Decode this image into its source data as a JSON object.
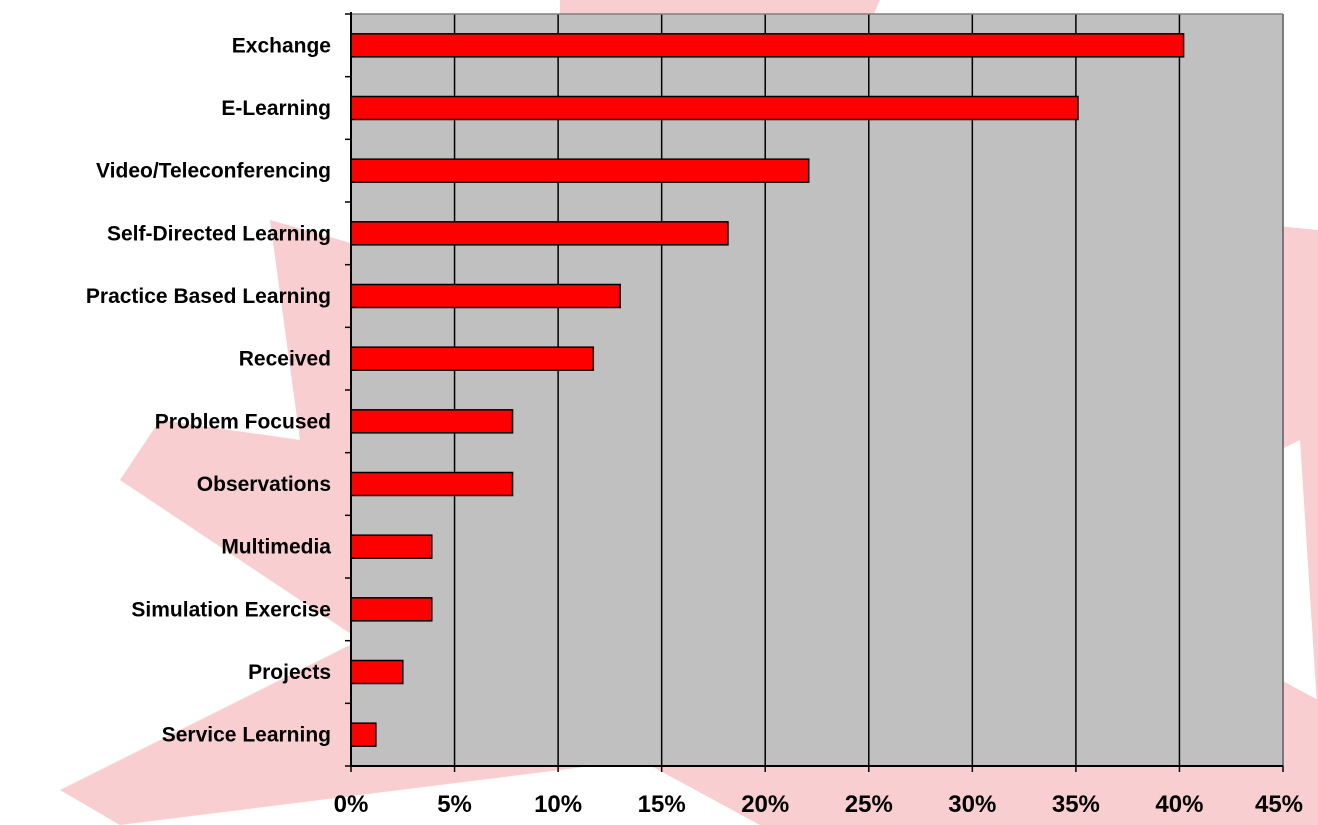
{
  "colors": {
    "bar_fill": "#ff0000",
    "bar_stroke": "#000000",
    "plot_background": "#c0c0c0",
    "gridline": "#000000",
    "decorative_shape": "#f4a6aa"
  },
  "chart_data": {
    "type": "bar",
    "orientation": "horizontal",
    "title": "",
    "xlabel": "",
    "ylabel": "",
    "categories": [
      "Exchange",
      "E-Learning",
      "Video/Teleconferencing",
      "Self-Directed Learning",
      "Practice Based Learning",
      "Received",
      "Problem Focused",
      "Observations",
      "Multimedia",
      "Simulation Exercise",
      "Projects",
      "Service Learning"
    ],
    "values": [
      40.2,
      35.1,
      22.1,
      18.2,
      13.0,
      11.7,
      7.8,
      7.8,
      3.9,
      3.9,
      2.5,
      1.2
    ],
    "xlim": [
      0,
      45
    ],
    "x_ticks": [
      0,
      5,
      10,
      15,
      20,
      25,
      30,
      35,
      40,
      45
    ],
    "x_tick_labels": [
      "0%",
      "5%",
      "10%",
      "15%",
      "20%",
      "25%",
      "30%",
      "35%",
      "40%",
      "45%"
    ],
    "grid": "vertical",
    "legend": "none"
  }
}
